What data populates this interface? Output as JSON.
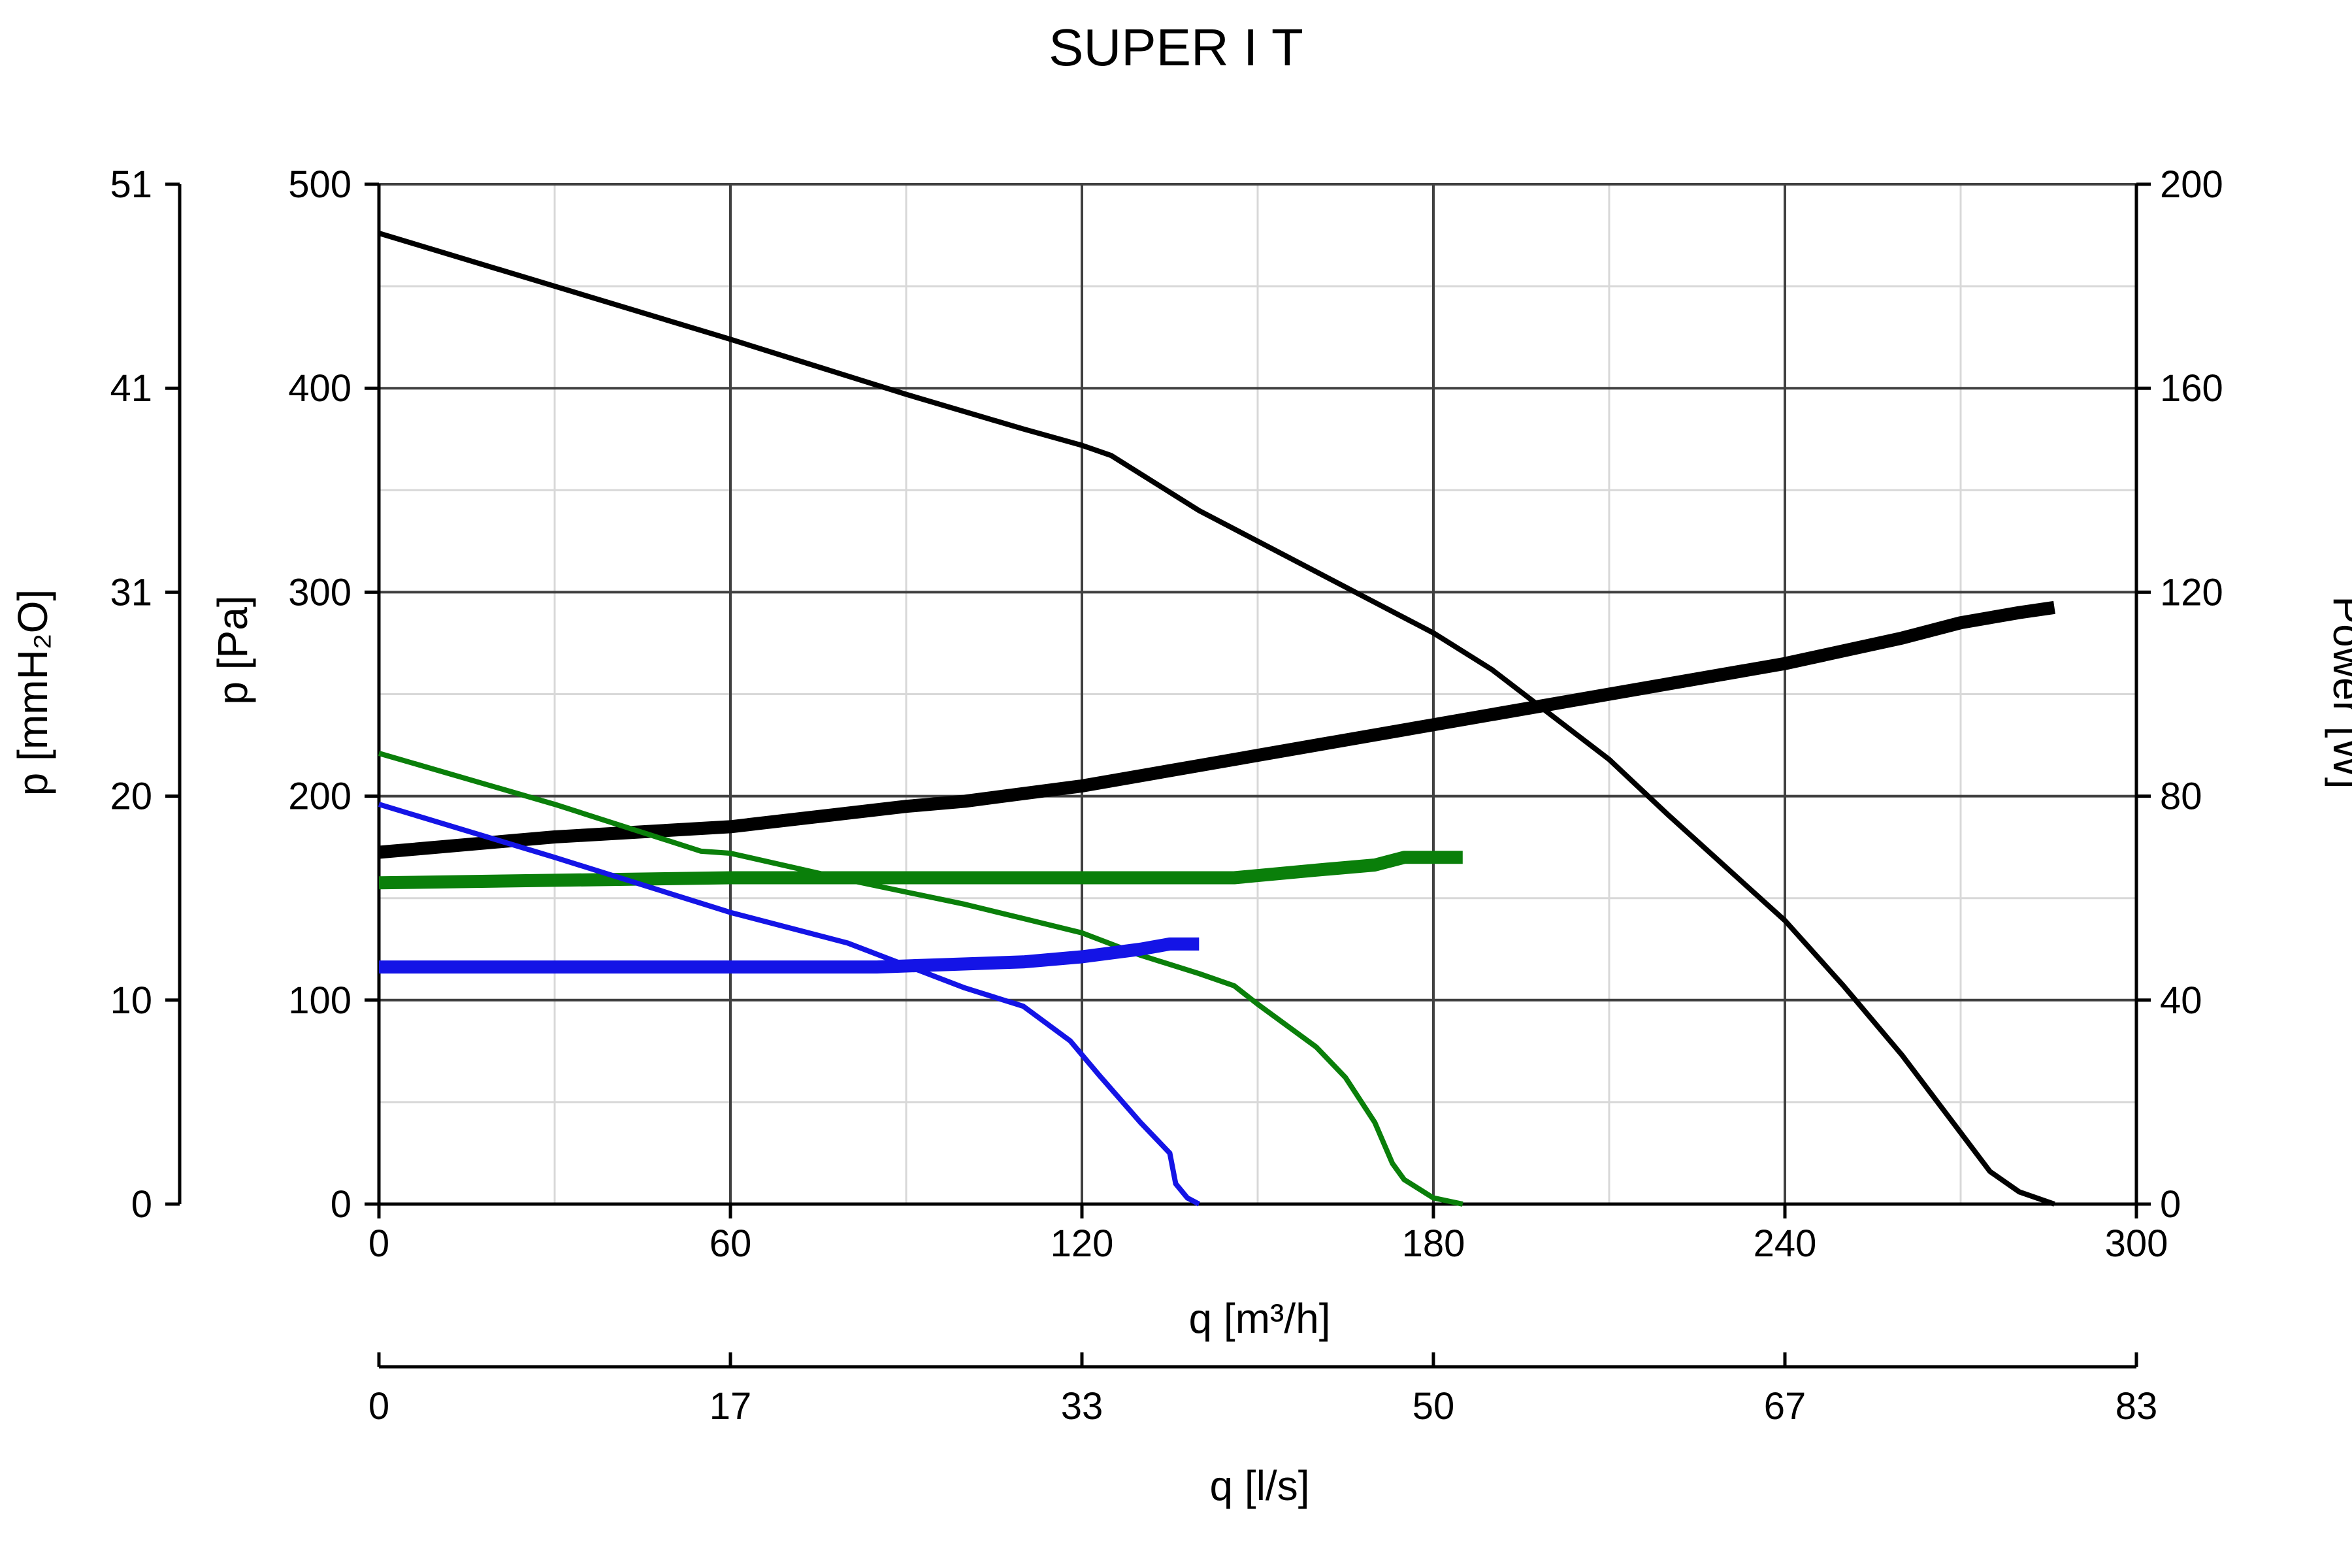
{
  "chart_data": {
    "type": "line",
    "title": "SUPER I T",
    "xlabel": "q [m³/h]",
    "x2label": "q [l/s]",
    "ylabel": "p [Pa]",
    "y2label": "p [mmH₂O]",
    "y3label": "Power [W]",
    "xlim": [
      0,
      300
    ],
    "ylim": [
      0,
      500
    ],
    "power_lim": [
      0,
      200
    ],
    "x_ticks": [
      "0",
      "60",
      "120",
      "180",
      "240",
      "300"
    ],
    "x2_ticks": [
      "0",
      "17",
      "33",
      "50",
      "67",
      "83"
    ],
    "y_ticks": [
      "0",
      "100",
      "200",
      "300",
      "400",
      "500"
    ],
    "y2_ticks": [
      "0",
      "10",
      "20",
      "31",
      "41",
      "51"
    ],
    "power_ticks": [
      "0",
      "40",
      "80",
      "120",
      "160",
      "200"
    ],
    "grid": true,
    "colors": {
      "black": "#000000",
      "green": "#0a7f0a",
      "blue": "#1414e6",
      "major_grid": "#404040",
      "minor_grid": "#d8d8d8"
    },
    "series": [
      {
        "kind": "pressure",
        "axis": "pressure",
        "color": "#000000",
        "x": [
          0,
          30,
          60,
          90,
          110,
          120,
          125,
          140,
          160,
          170,
          180,
          190,
          200,
          210,
          220,
          230,
          240,
          250,
          260,
          265,
          270,
          275,
          280,
          286
        ],
        "y": [
          476,
          450,
          424,
          397,
          380,
          372,
          367,
          340,
          310,
          295,
          280,
          262,
          240,
          218,
          191,
          165,
          139,
          107,
          73,
          54,
          35,
          16,
          6,
          0
        ]
      },
      {
        "kind": "power",
        "axis": "power",
        "color": "#000000",
        "x": [
          0,
          30,
          60,
          90,
          100,
          120,
          140,
          160,
          180,
          200,
          220,
          240,
          260,
          270,
          280,
          286
        ],
        "y": [
          69,
          72,
          74,
          78,
          79,
          82,
          86,
          90,
          94,
          98,
          102,
          106,
          111,
          114,
          116,
          117
        ]
      },
      {
        "kind": "pressure",
        "axis": "pressure",
        "color": "#0a7f0a",
        "x": [
          0,
          30,
          55,
          60,
          80,
          100,
          110,
          120,
          130,
          140,
          146,
          150,
          160,
          165,
          170,
          173,
          175,
          180,
          185
        ],
        "y": [
          221,
          196,
          173,
          172,
          159,
          147,
          140,
          133,
          122,
          113,
          107,
          98,
          77,
          62,
          40,
          20,
          12,
          3,
          0
        ]
      },
      {
        "kind": "power",
        "axis": "power",
        "color": "#0a7f0a",
        "x": [
          0,
          60,
          100,
          146,
          160,
          170,
          175,
          180,
          185
        ],
        "y": [
          63,
          64,
          64,
          64,
          65.5,
          66.5,
          68,
          68,
          68
        ]
      },
      {
        "kind": "pressure",
        "axis": "pressure",
        "color": "#1414e6",
        "x": [
          0,
          30,
          60,
          80,
          100,
          110,
          118,
          123,
          130,
          135,
          136,
          138,
          140
        ],
        "y": [
          196,
          170,
          143,
          128,
          106,
          97,
          80,
          63,
          40,
          25,
          10,
          3,
          0
        ]
      },
      {
        "kind": "power",
        "axis": "power",
        "color": "#1414e6",
        "x": [
          0,
          60,
          85,
          110,
          120,
          130,
          135,
          140
        ],
        "y": [
          46.5,
          46.5,
          46.5,
          47.5,
          48.5,
          50,
          51,
          51
        ]
      }
    ]
  }
}
